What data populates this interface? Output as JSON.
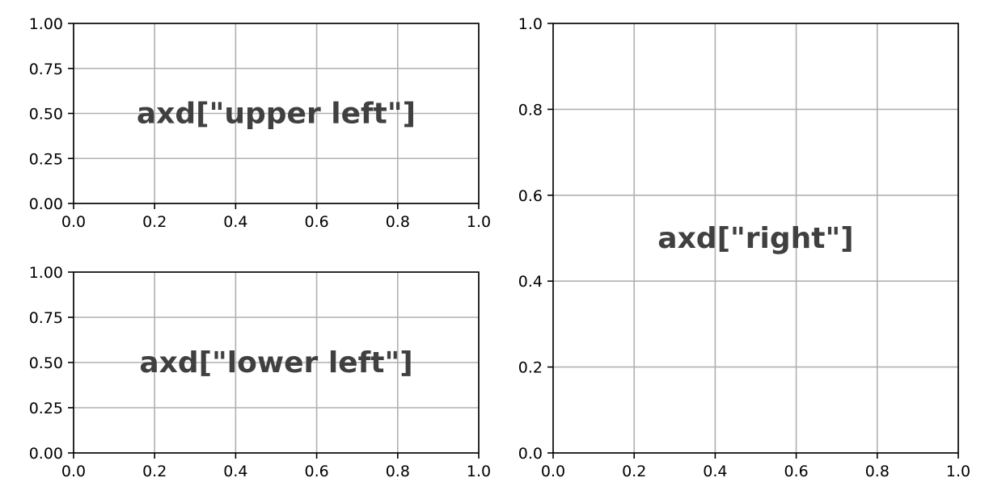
{
  "chart_data": [
    {
      "type": "line",
      "name": "upper left",
      "label": "axd[\"upper left\"]",
      "xlim": [
        0,
        1
      ],
      "ylim": [
        0,
        1
      ],
      "xticks": [
        "0.0",
        "0.2",
        "0.4",
        "0.6",
        "0.8",
        "1.0"
      ],
      "yticks": [
        "0.00",
        "0.25",
        "0.50",
        "0.75",
        "1.00"
      ],
      "grid": true,
      "series": []
    },
    {
      "type": "line",
      "name": "lower left",
      "label": "axd[\"lower left\"]",
      "xlim": [
        0,
        1
      ],
      "ylim": [
        0,
        1
      ],
      "xticks": [
        "0.0",
        "0.2",
        "0.4",
        "0.6",
        "0.8",
        "1.0"
      ],
      "yticks": [
        "0.00",
        "0.25",
        "0.50",
        "0.75",
        "1.00"
      ],
      "grid": true,
      "series": []
    },
    {
      "type": "line",
      "name": "right",
      "label": "axd[\"right\"]",
      "xlim": [
        0,
        1
      ],
      "ylim": [
        0,
        1
      ],
      "xticks": [
        "0.0",
        "0.2",
        "0.4",
        "0.6",
        "0.8",
        "1.0"
      ],
      "yticks": [
        "0.0",
        "0.2",
        "0.4",
        "0.6",
        "0.8",
        "1.0"
      ],
      "grid": true,
      "series": []
    }
  ],
  "colors": {
    "grid": "#b0b0b0",
    "axes": "#000000",
    "label": "#404040",
    "background": "#ffffff"
  }
}
